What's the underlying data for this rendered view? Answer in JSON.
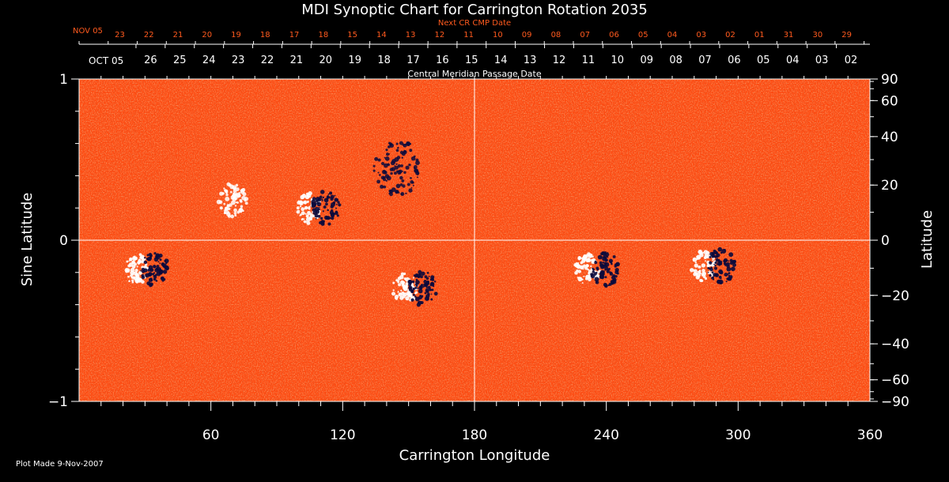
{
  "chart_data": {
    "type": "heatmap",
    "title": "MDI Synoptic Chart for Carrington Rotation 2035",
    "xlabel": "Carrington Longitude",
    "ylabel_left": "Sine Latitude",
    "ylabel_right": "Latitude",
    "xlim": [
      0,
      360
    ],
    "ylim": [
      -1,
      1
    ],
    "x_ticks": [
      60,
      120,
      180,
      240,
      300,
      360
    ],
    "x_minor_step": 10,
    "y_left_ticks": [
      {
        "value": 1,
        "label": "1"
      },
      {
        "value": 0,
        "label": "0"
      },
      {
        "value": -1,
        "label": "−1"
      }
    ],
    "y_right_ticks": [
      90,
      60,
      40,
      20,
      0,
      -20,
      -40,
      -60,
      -90
    ],
    "center_lines": {
      "longitude": 180,
      "sine_latitude": 0
    },
    "top_axis_label": "Central Meridian Passage Date",
    "top_axis": {
      "month_start": "OCT 05",
      "dates": [
        "26",
        "25",
        "24",
        "23",
        "22",
        "21",
        "20",
        "19",
        "18",
        "17",
        "16",
        "15",
        "14",
        "13",
        "12",
        "11",
        "10",
        "09",
        "08",
        "07",
        "06",
        "05",
        "04",
        "03",
        "02"
      ]
    },
    "next_axis": {
      "label": "Next CR CMP Date",
      "month_start": "NOV 05",
      "dates": [
        "23",
        "22",
        "21",
        "20",
        "19",
        "18",
        "17",
        "18",
        "15",
        "14",
        "13",
        "12",
        "11",
        "10",
        "09",
        "08",
        "07",
        "06",
        "05",
        "04",
        "03",
        "02",
        "01",
        "31",
        "30",
        "29"
      ]
    },
    "colormap": {
      "negative": "#0a0a3c",
      "background": "#ff4a10",
      "positive": "#ffffff"
    },
    "active_regions": [
      {
        "lon": 30,
        "sinlat": -0.18,
        "polarity": "bipolar"
      },
      {
        "lon": 70,
        "sinlat": 0.25,
        "polarity": "positive"
      },
      {
        "lon": 108,
        "sinlat": 0.2,
        "polarity": "bipolar"
      },
      {
        "lon": 145,
        "sinlat": 0.45,
        "polarity": "negative"
      },
      {
        "lon": 152,
        "sinlat": -0.3,
        "polarity": "bipolar"
      },
      {
        "lon": 235,
        "sinlat": -0.18,
        "polarity": "bipolar"
      },
      {
        "lon": 288,
        "sinlat": -0.16,
        "polarity": "bipolar"
      }
    ]
  },
  "footer": {
    "plot_made": "Plot Made  9-Nov-2007"
  }
}
